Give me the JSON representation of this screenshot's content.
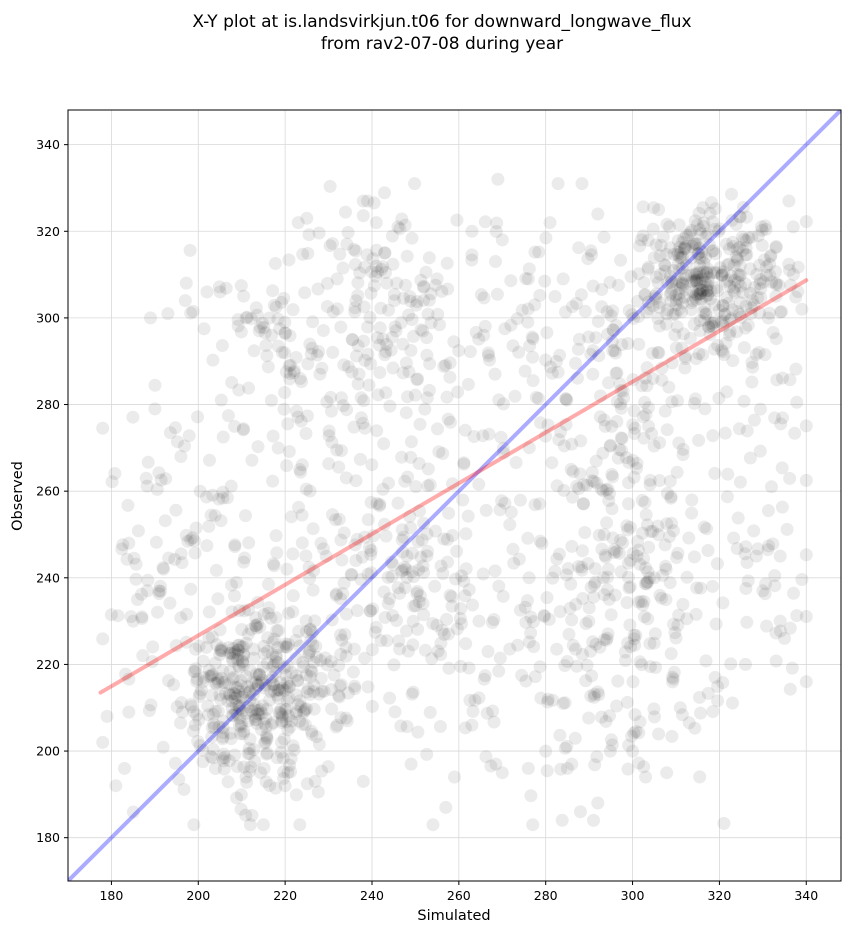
{
  "chart_data": {
    "type": "scatter",
    "title": "X-Y plot at is.landsvirkjun.t06 for downward_longwave_flux",
    "subtitle": "from rav2-07-08 during year",
    "xlabel": "Simulated",
    "ylabel": "Observed",
    "xlim": [
      170,
      348
    ],
    "ylim": [
      170,
      348
    ],
    "xticks": [
      180,
      200,
      220,
      240,
      260,
      280,
      300,
      320,
      340
    ],
    "yticks": [
      180,
      200,
      220,
      240,
      260,
      280,
      300,
      320,
      340
    ],
    "grid": true,
    "point_color": "#000000",
    "point_alpha": 0.08,
    "lines": [
      {
        "kind": "one-to-one",
        "color": "#0000ff",
        "alpha": 0.33,
        "x": [
          170,
          348
        ],
        "y": [
          170,
          348
        ]
      },
      {
        "kind": "regression",
        "color": "#ff0000",
        "alpha": 0.33,
        "x": [
          177.5,
          340
        ],
        "y": [
          213.5,
          308.7
        ]
      }
    ],
    "clusters": [
      {
        "cx": 214,
        "cy": 213,
        "sx": 8,
        "sy": 10,
        "n": 340
      },
      {
        "cx": 318,
        "cy": 309,
        "sx": 9,
        "sy": 9,
        "n": 340
      },
      {
        "cx": 248,
        "cy": 243,
        "sx": 9,
        "sy": 12,
        "n": 110
      },
      {
        "cx": 222,
        "cy": 285,
        "sx": 12,
        "sy": 18,
        "n": 150
      },
      {
        "cx": 300,
        "cy": 262,
        "sx": 12,
        "sy": 25,
        "n": 240
      },
      {
        "cx": 268,
        "cy": 292,
        "sx": 20,
        "sy": 17,
        "n": 140
      },
      {
        "cx": 300,
        "cy": 222,
        "sx": 14,
        "sy": 16,
        "n": 130
      },
      {
        "cx": 196,
        "cy": 240,
        "sx": 9,
        "sy": 24,
        "n": 110
      },
      {
        "cx": 245,
        "cy": 302,
        "sx": 10,
        "sy": 14,
        "n": 90
      },
      {
        "cx": 330,
        "cy": 255,
        "sx": 6,
        "sy": 22,
        "n": 60
      },
      {
        "cx": 268,
        "cy": 230,
        "sx": 14,
        "sy": 22,
        "n": 90
      },
      {
        "cx": 230,
        "cy": 225,
        "sx": 14,
        "sy": 14,
        "n": 90
      }
    ],
    "points": [
      [
        178,
        202
      ],
      [
        181,
        192
      ],
      [
        184,
        248
      ],
      [
        190,
        279
      ],
      [
        188,
        263
      ],
      [
        193,
        301
      ],
      [
        197,
        304
      ],
      [
        202,
        306
      ],
      [
        205,
        306
      ],
      [
        269,
        332
      ],
      [
        238,
        327
      ],
      [
        223,
        322
      ],
      [
        225,
        323
      ],
      [
        239,
        327
      ],
      [
        241,
        322
      ],
      [
        263,
        320
      ],
      [
        292,
        324
      ],
      [
        281,
        322
      ],
      [
        306,
        325
      ],
      [
        277,
        183
      ],
      [
        259,
        194
      ],
      [
        212,
        183
      ],
      [
        215,
        183
      ],
      [
        238,
        193
      ],
      [
        291,
        184
      ],
      [
        292,
        188
      ],
      [
        288,
        186
      ],
      [
        249,
        197
      ],
      [
        285,
        196
      ],
      [
        257,
        187
      ],
      [
        280,
        200
      ],
      [
        300,
        200
      ],
      [
        303,
        194
      ],
      [
        334,
        245
      ],
      [
        334,
        230
      ],
      [
        335,
        226
      ],
      [
        339,
        302
      ],
      [
        333,
        305
      ],
      [
        337,
        321
      ],
      [
        336,
        327
      ],
      [
        186,
        235
      ],
      [
        187,
        231
      ],
      [
        192,
        242
      ],
      [
        196,
        268
      ],
      [
        189,
        300
      ],
      [
        184,
        209
      ],
      [
        179,
        208
      ],
      [
        183,
        196
      ],
      [
        199,
        183
      ],
      [
        220,
        192
      ],
      [
        232,
        206
      ],
      [
        236,
        215
      ],
      [
        263,
        206
      ],
      [
        270,
        195
      ],
      [
        276,
        196
      ],
      [
        284,
        211
      ],
      [
        286,
        197
      ],
      [
        311,
        210
      ],
      [
        319,
        217
      ],
      [
        326,
        220
      ],
      [
        330,
        237
      ],
      [
        332,
        261
      ],
      [
        305,
        240
      ],
      [
        296,
        236
      ],
      [
        246,
        321
      ],
      [
        243,
        315
      ],
      [
        255,
        309
      ],
      [
        270,
        318
      ],
      [
        276,
        309
      ],
      [
        284,
        309
      ],
      [
        232,
        309
      ],
      [
        211,
        300
      ]
    ]
  }
}
